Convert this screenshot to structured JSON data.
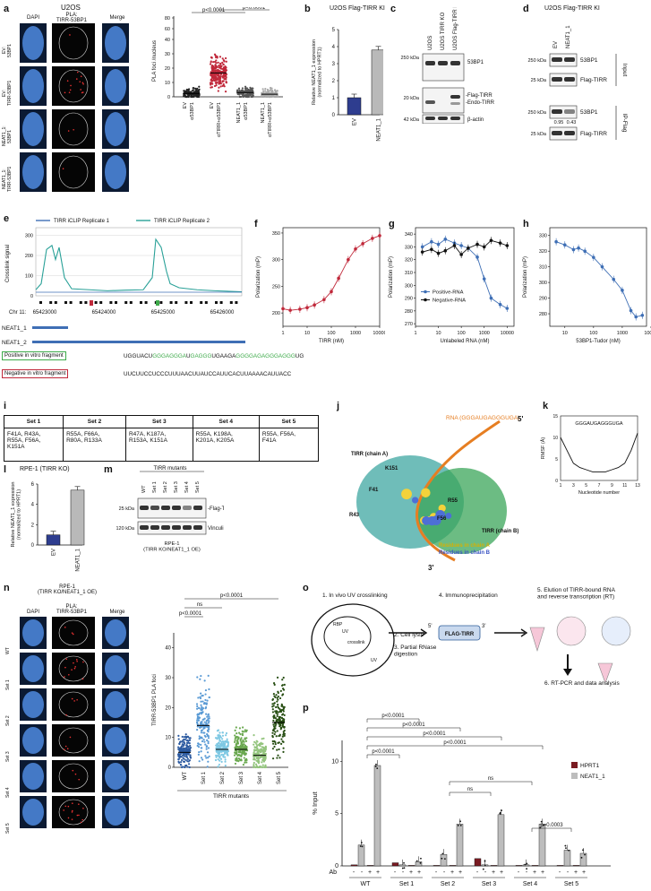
{
  "panels": {
    "a": {
      "letter": "a",
      "title": "U2OS",
      "col_headers": [
        "DAPI",
        "PLA:\nTIRR-53BP1",
        "Merge"
      ],
      "row_labels": [
        "EV:\n53BP1",
        "EV:\nTIRR-53BP1",
        "NEAT1_1:\n53BP1",
        "NEAT1_1:\nTIRR-53BP1"
      ],
      "chart_data": {
        "type": "scatter",
        "ylabel": "PLA foci /nucleus",
        "groups": [
          "αTIRR+α53BP1",
          "α53BP1",
          "αTIRR+α53BP1",
          "α53BP1"
        ],
        "group_hint": [
          "EV",
          "EV",
          "NEAT1_1",
          "NEAT1_1"
        ],
        "means": [
          2,
          14,
          2.5,
          1.5
        ],
        "yticks": [
          "0",
          "10",
          "20",
          "30",
          "40",
          "60",
          "80"
        ],
        "pvalues": [
          "p<0.0001",
          "p<0.0001"
        ],
        "group_labels": [
          "α53BP1",
          "αTIRR+α53BP1",
          "α53BP1",
          "αTIRR+α53BP1"
        ],
        "group_sub": [
          "EV",
          "EV",
          "NEAT1_1",
          "NEAT1_1"
        ]
      }
    },
    "b": {
      "letter": "b",
      "title": "U2OS Flag-TIRR KI",
      "chart_data": {
        "type": "bar",
        "categories": [
          "EV",
          "NEAT1_1"
        ],
        "values": [
          1.0,
          3.8
        ],
        "ylim": [
          0,
          5
        ],
        "yticks": [
          "0",
          "1",
          "2",
          "3",
          "4",
          "5"
        ],
        "ylabel": "Relative NEAT1_1 expression\n(normalized to HPRT1)"
      }
    },
    "c": {
      "letter": "c",
      "lanes": [
        "U2OS",
        "U2OS TIRR KO",
        "U2OS Flag-TIRR KI"
      ],
      "markers": [
        "250 kDa",
        "20 kDa",
        "42 kDa"
      ],
      "bands": [
        "53BP1",
        "-Flag-TIRR",
        "-Endo-TIRR",
        "β-actin"
      ]
    },
    "d": {
      "letter": "d",
      "title": "U2OS Flag-TIRR KI",
      "lanes": [
        "EV",
        "NEAT1_1"
      ],
      "markers": [
        "250 kDa",
        "25 kDa",
        "250 kDa",
        "25 kDa"
      ],
      "bands": [
        "53BP1",
        "Flag-TIRR",
        "53BP1",
        "Flag-TIRR"
      ],
      "groups": [
        "Input",
        "IP-Flag"
      ],
      "quant": [
        "0.95",
        "0.43"
      ]
    },
    "e": {
      "letter": "e",
      "legend": [
        "TIRR iCLIP Replicate 1",
        "TIRR iCLIP Replicate 2"
      ],
      "ylabel": "Crosslink signal",
      "yticks": [
        "0",
        "100",
        "200",
        "300"
      ],
      "xticks": [
        "65423000",
        "65424000",
        "65425000",
        "65426000"
      ],
      "chr": "Chr 11:",
      "tracks": [
        "NEAT1_1",
        "NEAT1_2"
      ],
      "pos_label": "Positive in vitro fragment",
      "pos_seq_black1": "UGGUACU",
      "pos_seq_green1": "GGGAGGGA",
      "pos_seq_black2": "U",
      "pos_seq_green2": "GAGGG",
      "pos_seq_black3": "UGAAGA",
      "pos_seq_green3": "GGGGAGAGGGAGGG",
      "pos_seq_black4": "UG",
      "neg_label": "Negative in vitro fragment",
      "neg_seq": "UUCUUCCUCCCUUUAACUUAUCCAUUCACUUAAAACAUUACC"
    },
    "f": {
      "letter": "f",
      "chart_data": {
        "type": "line",
        "xlabel": "TIRR (nM)",
        "ylabel": "Polarization (mP)",
        "xticks": [
          "1",
          "10",
          "100",
          "1000",
          "10000"
        ],
        "yticks": [
          "200",
          "250",
          "300",
          "350"
        ],
        "ylim": [
          175,
          360
        ],
        "x": [
          1,
          2,
          5,
          10,
          20,
          50,
          100,
          200,
          500,
          1000,
          2000,
          5000,
          10000
        ],
        "y": [
          208,
          205,
          207,
          210,
          215,
          225,
          240,
          265,
          300,
          320,
          330,
          340,
          345
        ]
      }
    },
    "g": {
      "letter": "g",
      "chart_data": {
        "type": "line",
        "xlabel": "Unlabeled RNA (nM)",
        "ylabel": "Polarization (mP)",
        "xticks": [
          "1",
          "10",
          "100",
          "1000",
          "10000"
        ],
        "yticks": [
          "270",
          "280",
          "290",
          "300",
          "310",
          "320",
          "330",
          "340"
        ],
        "ylim": [
          268,
          345
        ],
        "series": [
          {
            "name": "Positive-RNA",
            "x": [
              2,
              5,
              10,
              20,
              50,
              100,
              200,
              500,
              1000,
              2000,
              5000,
              10000
            ],
            "y": [
              330,
              334,
              332,
              336,
              333,
              331,
              329,
              322,
              305,
              290,
              285,
              282
            ]
          },
          {
            "name": "Negative-RNA",
            "x": [
              2,
              5,
              10,
              20,
              50,
              100,
              200,
              500,
              1000,
              2000,
              5000,
              10000
            ],
            "y": [
              326,
              328,
              325,
              327,
              331,
              324,
              329,
              332,
              330,
              335,
              333,
              331
            ]
          }
        ]
      }
    },
    "h": {
      "letter": "h",
      "chart_data": {
        "type": "line",
        "xlabel": "53BP1-Tudor (nM)",
        "ylabel": "Polarization (mP)",
        "xticks": [
          "10",
          "100",
          "1000",
          "10000"
        ],
        "yticks": [
          "280",
          "290",
          "300",
          "310",
          "320",
          "330"
        ],
        "ylim": [
          272,
          335
        ],
        "x": [
          5,
          10,
          20,
          30,
          50,
          100,
          200,
          500,
          1000,
          2000,
          3000,
          5000
        ],
        "y": [
          326,
          324,
          321,
          322,
          320,
          316,
          310,
          302,
          295,
          282,
          278,
          279
        ]
      }
    },
    "i": {
      "letter": "i",
      "headers": [
        "Set 1",
        "Set 2",
        "Set 3",
        "Set 4",
        "Set 5"
      ],
      "cells": [
        "F41A, R43A,\nR55A, F56A,\nK151A",
        "R55A, F66A,\nR80A, R133A",
        "R47A, K187A,\nR153A, K151A",
        "R55A, K198A,\nK201A, K205A",
        "R55A, F56A,\nF41A"
      ]
    },
    "j": {
      "letter": "j",
      "labels": [
        "RNA (GGGAUGAGGGUGA)",
        "5'",
        "TIRR (chain A)",
        "K151",
        "F41",
        "R43",
        "R55",
        "F56",
        "TIRR (chain B)",
        "3'",
        "Residues in chain A",
        "Residues in chain B"
      ]
    },
    "k": {
      "letter": "k",
      "chart_data": {
        "type": "line",
        "title": "GGGAUGAGGGUGA",
        "xlabel": "Nucleotide number",
        "ylabel": "RMSF (Å)",
        "xticks": [
          "1",
          "3",
          "5",
          "7",
          "9",
          "11",
          "13"
        ],
        "yticks": [
          "0",
          "5",
          "10",
          "15"
        ],
        "ylim": [
          0,
          15
        ],
        "x": [
          1,
          2,
          3,
          4,
          5,
          6,
          7,
          8,
          9,
          10,
          11,
          12,
          13
        ],
        "y": [
          10,
          7,
          4,
          3,
          2.5,
          2,
          2,
          2,
          2.5,
          3,
          4,
          7,
          11
        ]
      }
    },
    "l": {
      "letter": "l",
      "title": "RPE-1 (TIRR KO)",
      "chart_data": {
        "type": "bar",
        "categories": [
          "EV",
          "NEAT1_1"
        ],
        "values": [
          1.0,
          5.4
        ],
        "ylim": [
          0,
          6
        ],
        "yticks": [
          "0",
          "2",
          "4",
          "6"
        ],
        "ylabel": "Relative NEAT1_1 expression\n(normalized to HPRT1)"
      }
    },
    "m": {
      "letter": "m",
      "title": "TIRR mutants",
      "lanes": [
        "WT",
        "Set 1",
        "Set 2",
        "Set 3",
        "Set 4",
        "Set 5"
      ],
      "markers": [
        "25 kDa",
        "120 kDa"
      ],
      "bands": [
        "-Flag-TIRR",
        "Vinculin"
      ],
      "caption": "RPE-1\n(TIRR KO/NEAT1_1 OE)"
    },
    "n": {
      "letter": "n",
      "title": "RPE-1\n(TIRR KO/NEAT1_1 OE)",
      "col_headers": [
        "DAPI",
        "PLA:\nTIRR-53BP1",
        "Merge"
      ],
      "row_labels": [
        "WT",
        "Set 1",
        "Set 2",
        "Set 3",
        "Set 4",
        "Set 5"
      ],
      "chart_data": {
        "type": "scatter",
        "ylabel": "TIRR-53BP1 PLA foci",
        "xlabel": "TIRR mutants",
        "categories": [
          "WT",
          "Set 1",
          "Set 2",
          "Set 3",
          "Set 4",
          "Set 5"
        ],
        "means": [
          5,
          14,
          6,
          6,
          4,
          15
        ],
        "ylim": [
          0,
          45
        ],
        "yticks": [
          "0",
          "10",
          "20",
          "30",
          "40"
        ],
        "pvalues": [
          "p<0.0001",
          "ns",
          "p<0.0001"
        ]
      }
    },
    "o": {
      "letter": "o",
      "steps": [
        "1. In vivo UV crosslinking",
        "2. Cell lysis",
        "3. Partial RNase\ndigestion",
        "4. Immunoprecipitation",
        "5. Elution of TIRR-bound RNA\nand reverse transcription (RT)",
        "6. RT-PCR and data analysis"
      ],
      "labels": [
        "RBP",
        "UV",
        "crosslink",
        "UV",
        "FLAG-TIRR",
        "5'",
        "3'"
      ]
    },
    "p": {
      "letter": "p",
      "chart_data": {
        "type": "bar",
        "ylabel": "% Input",
        "ylim": [
          0,
          12
        ],
        "yticks": [
          "0",
          "5",
          "10"
        ],
        "legend": [
          "HPRT1",
          "NEAT1_1"
        ],
        "groups": [
          "WT",
          "Set 1",
          "Set 2",
          "Set 3",
          "Set 4",
          "Set 5"
        ],
        "ab_label": "Ab",
        "ab_signs": [
          "-",
          "-",
          "+",
          "+"
        ],
        "series": [
          {
            "name": "HPRT1",
            "values": [
              0.1,
              0.05,
              0.3,
              0.05,
              0.05,
              0.05,
              0.7,
              0.05,
              0.05,
              0.05,
              0.05,
              0.05
            ]
          },
          {
            "name": "NEAT1_1",
            "values": [
              2.0,
              9.6,
              0.1,
              0.4,
              1.1,
              4.0,
              0.1,
              4.9,
              0.1,
              4.0,
              1.5,
              1.2
            ]
          }
        ],
        "pvalues": [
          "p<0.0001",
          "p<0.0001",
          "p<0.0001",
          "p<0.0001",
          "p<0.0001",
          "ns",
          "ns",
          "p=0.0003"
        ]
      }
    }
  },
  "colors": {
    "red": "#c0283a",
    "blue": "#3f6fb5",
    "teal": "#2aa198",
    "navy": "#2e3d8f",
    "grey": "#b9b9b9",
    "green": "#3daa4a",
    "darkgrey": "#555555",
    "lightblue": "#5ab4e8"
  }
}
